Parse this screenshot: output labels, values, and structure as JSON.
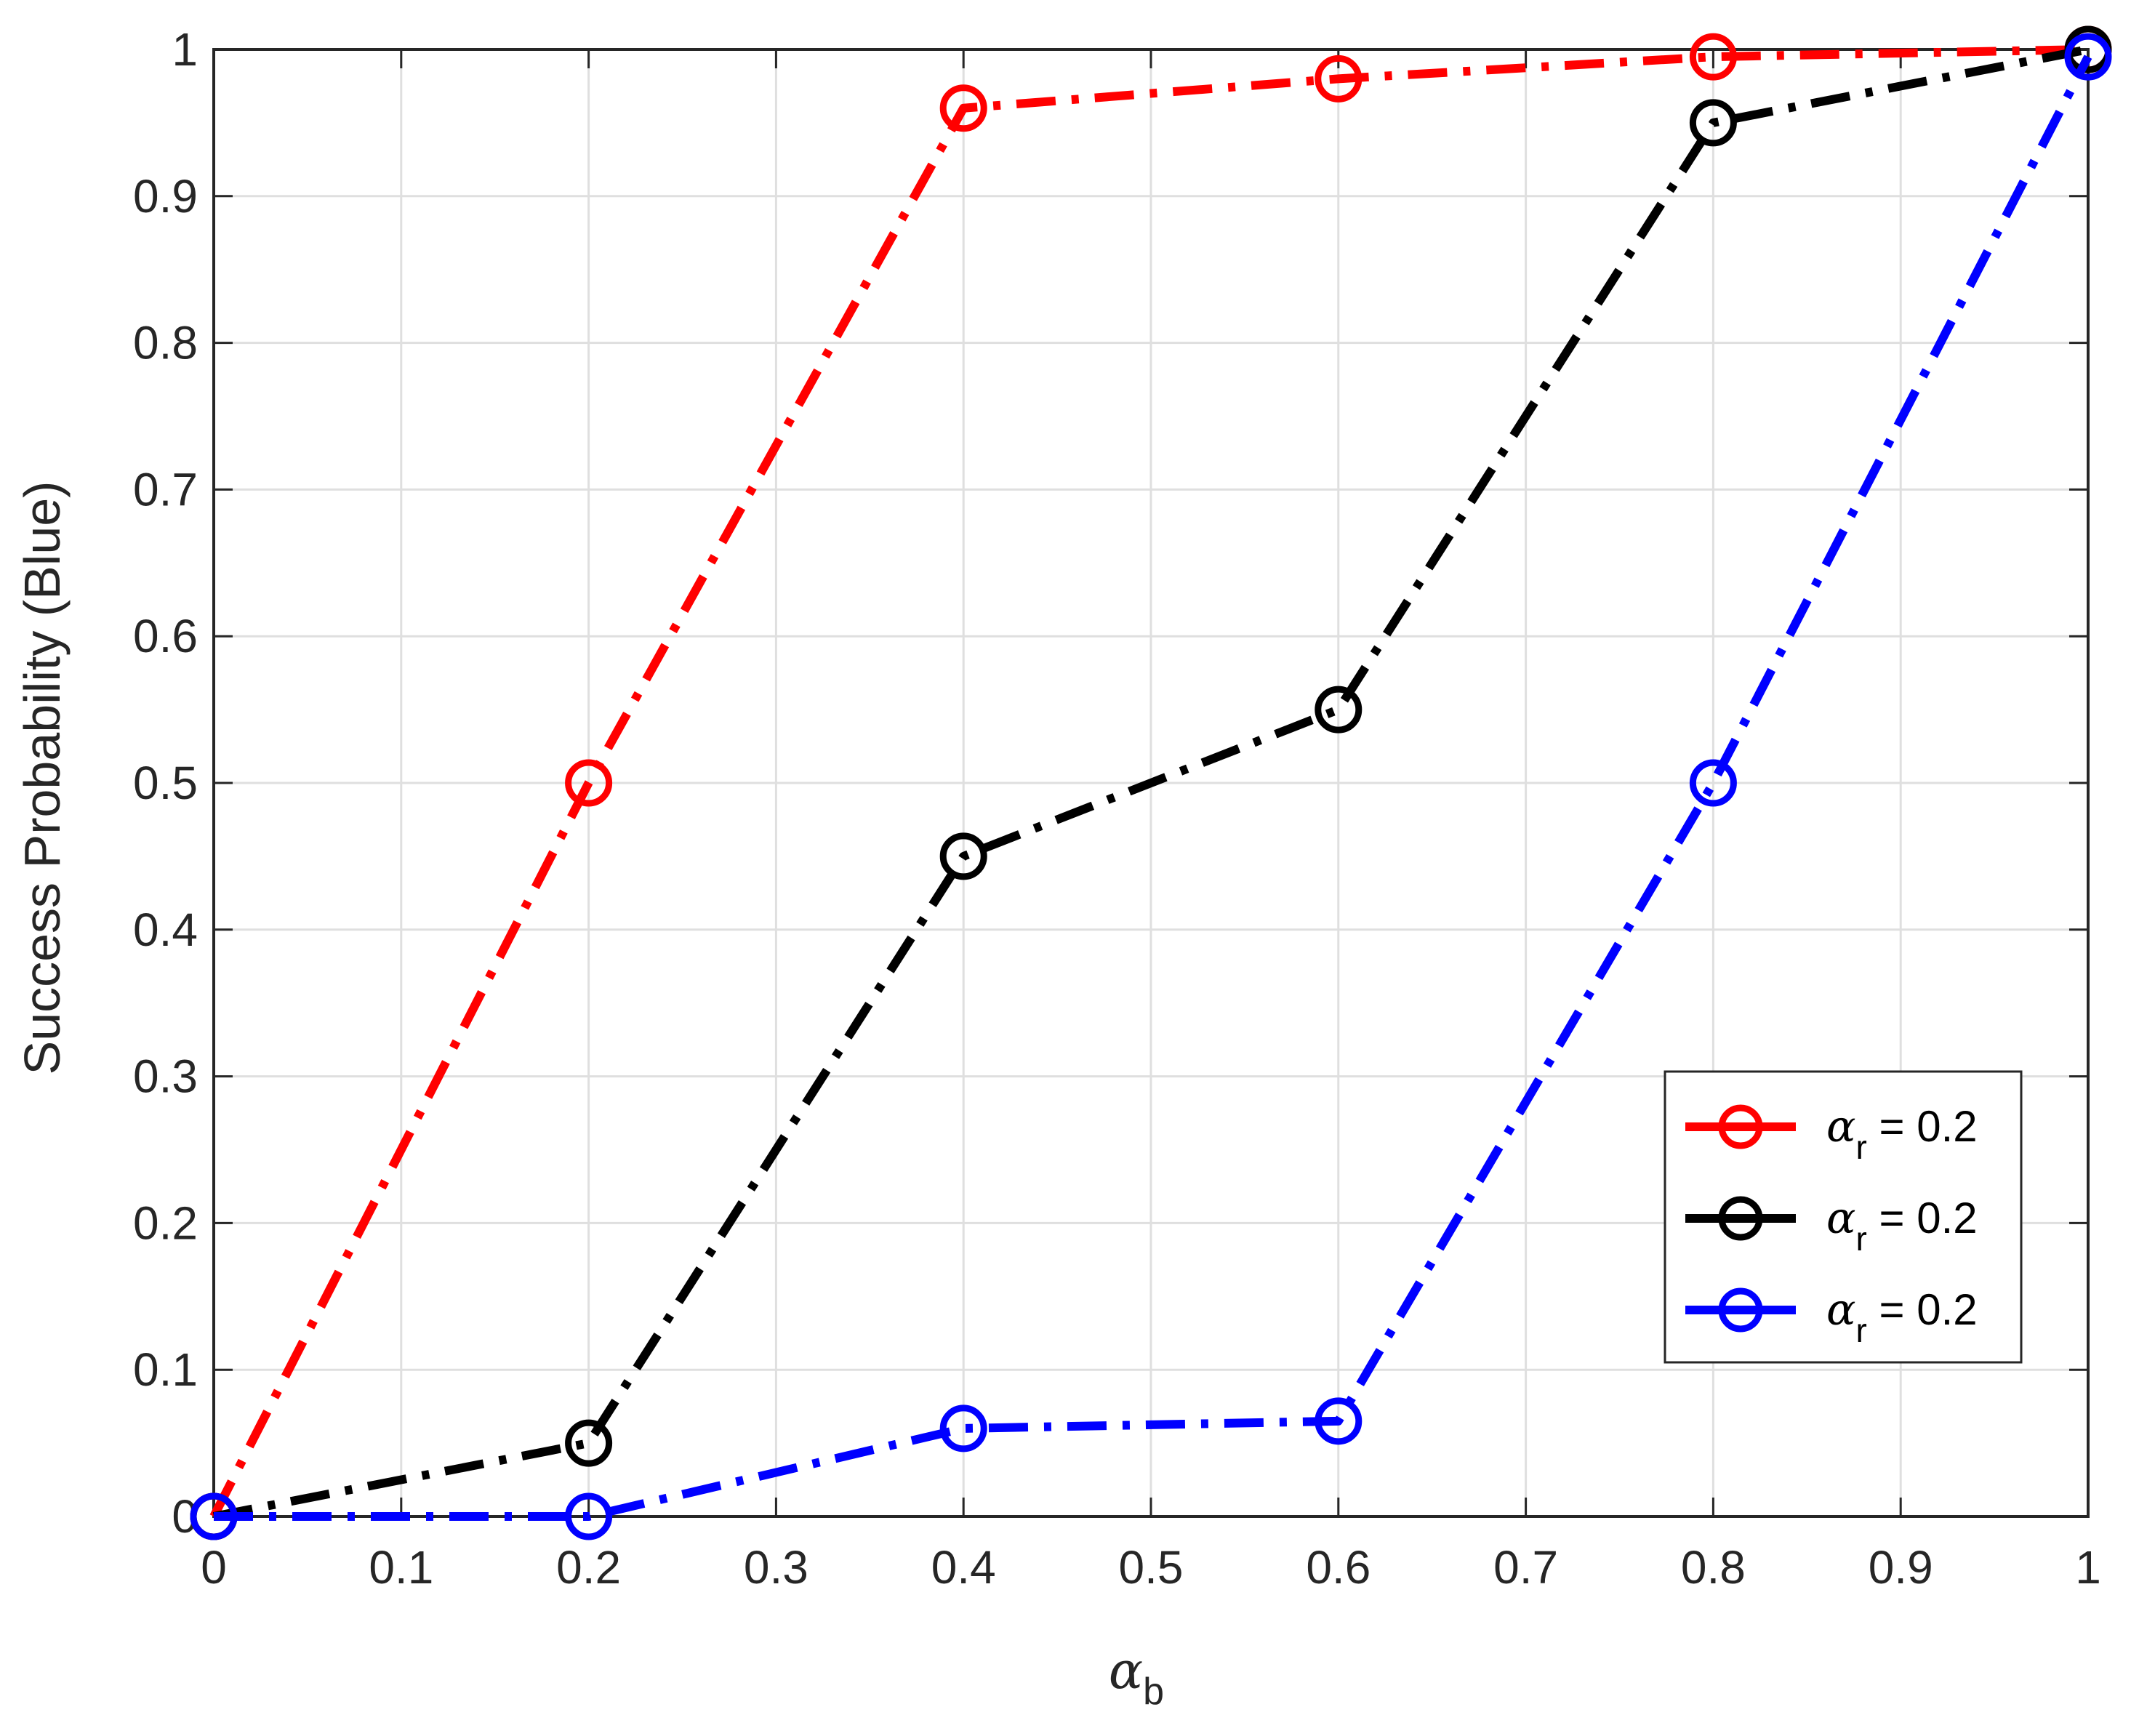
{
  "chart_data": {
    "type": "line",
    "title": "",
    "xlabel": {
      "symbol": "α",
      "subscript": "b"
    },
    "ylabel": "Success Probability (Blue)",
    "xlim": [
      0,
      1
    ],
    "ylim": [
      0,
      1
    ],
    "x_ticks": [
      "0",
      "0.1",
      "0.2",
      "0.3",
      "0.4",
      "0.5",
      "0.6",
      "0.7",
      "0.8",
      "0.9",
      "1"
    ],
    "y_ticks": [
      "0",
      "0.1",
      "0.2",
      "0.3",
      "0.4",
      "0.5",
      "0.6",
      "0.7",
      "0.8",
      "0.9",
      "1"
    ],
    "grid": true,
    "legend_position": "lower-right",
    "x": [
      0,
      0.2,
      0.4,
      0.6,
      0.8,
      1.0
    ],
    "series": [
      {
        "name": "α_r = 0.2",
        "legend": {
          "symbol": "α",
          "subscript": "r",
          "rest": " = 0.2"
        },
        "color": "#ff0000",
        "values": [
          0.0,
          0.5,
          0.96,
          0.98,
          0.995,
          1.0
        ]
      },
      {
        "name": "α_r = 0.2",
        "legend": {
          "symbol": "α",
          "subscript": "r",
          "rest": " = 0.2"
        },
        "color": "#000000",
        "values": [
          0.0,
          0.05,
          0.45,
          0.55,
          0.95,
          1.0
        ]
      },
      {
        "name": "α_r = 0.2",
        "legend": {
          "symbol": "α",
          "subscript": "r",
          "rest": " = 0.2"
        },
        "color": "#0000ff",
        "values": [
          0.0,
          0.0,
          0.06,
          0.065,
          0.5,
          0.995
        ]
      }
    ]
  }
}
